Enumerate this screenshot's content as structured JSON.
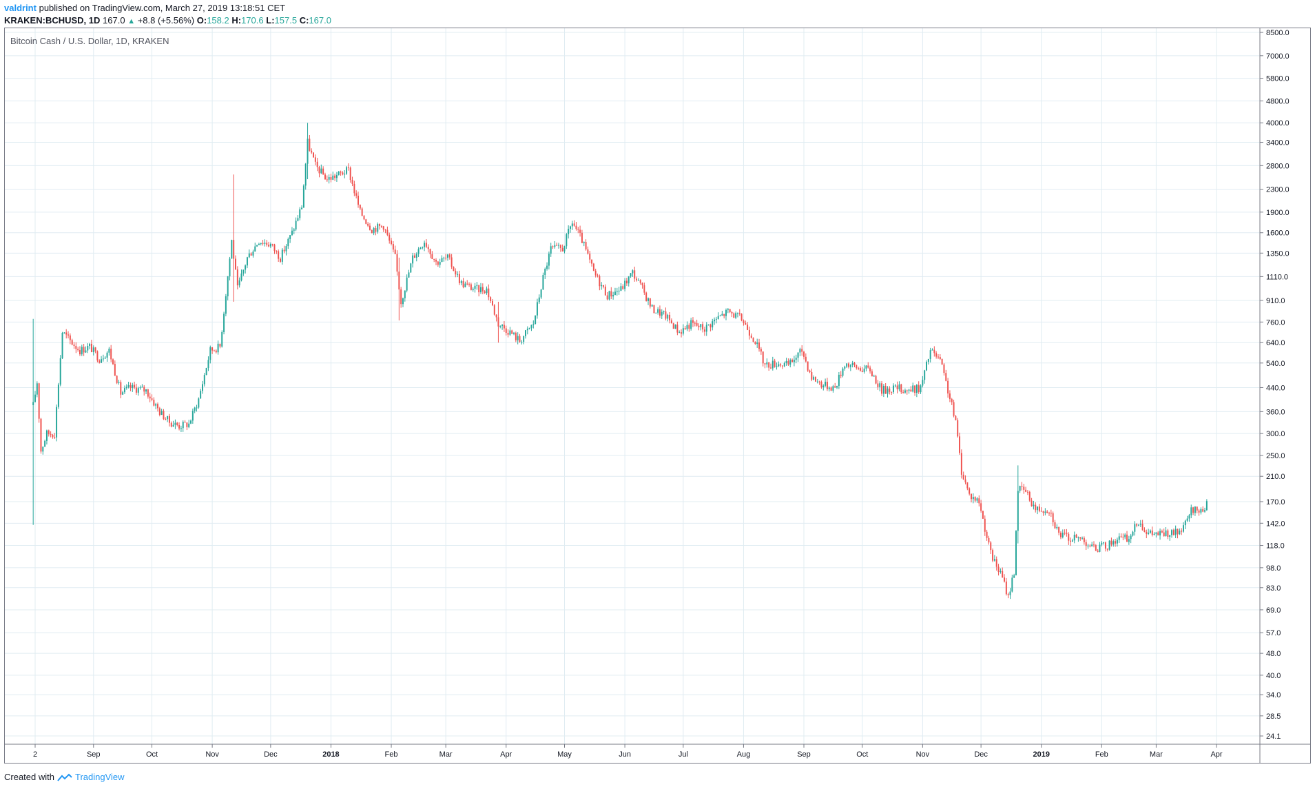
{
  "header": {
    "user": "valdrint",
    "published": "published on TradingView.com, March 27, 2019 13:18:51 CET",
    "symbol": "KRAKEN:BCHUSD, 1D",
    "last": "167.0",
    "change": "+8.8 (+5.56%)",
    "o_label": "O:",
    "o": "158.2",
    "h_label": "H:",
    "h": "170.6",
    "l_label": "L:",
    "l": "157.5",
    "c_label": "C:",
    "c": "167.0"
  },
  "footer": {
    "created": "Created with",
    "brand": "TradingView"
  },
  "colors": {
    "up": "#26a69a",
    "down": "#ef5350",
    "grid": "#e0ecf2",
    "axis": "#787b86"
  },
  "chart_data": {
    "type": "candlestick",
    "title": "Bitcoin Cash / U.S. Dollar, 1D, KRAKEN",
    "scale": "log",
    "ylim": [
      22.5,
      8800
    ],
    "grid": true,
    "y_ticks": [
      "8500.0",
      "7000.0",
      "5800.0",
      "4800.0",
      "4000.0",
      "3400.0",
      "2800.0",
      "2300.0",
      "1900.0",
      "1600.0",
      "1350.0",
      "1110.0",
      "910.0",
      "760.0",
      "640.0",
      "540.0",
      "440.0",
      "360.0",
      "300.0",
      "250.0",
      "210.0",
      "170.0",
      "142.0",
      "118.0",
      "98.0",
      "83.0",
      "69.0",
      "57.0",
      "48.0",
      "40.0",
      "34.0",
      "28.5",
      "24.1"
    ],
    "x_ticks": [
      {
        "date": "2017-08-02",
        "label": "2"
      },
      {
        "date": "2017-09-01",
        "label": "Sep"
      },
      {
        "date": "2017-10-01",
        "label": "Oct"
      },
      {
        "date": "2017-11-01",
        "label": "Nov"
      },
      {
        "date": "2017-12-01",
        "label": "Dec"
      },
      {
        "date": "2018-01-01",
        "label": "2018",
        "bold": true
      },
      {
        "date": "2018-02-01",
        "label": "Feb"
      },
      {
        "date": "2018-03-01",
        "label": "Mar"
      },
      {
        "date": "2018-04-01",
        "label": "Apr"
      },
      {
        "date": "2018-05-01",
        "label": "May"
      },
      {
        "date": "2018-06-01",
        "label": "Jun"
      },
      {
        "date": "2018-07-01",
        "label": "Jul"
      },
      {
        "date": "2018-08-01",
        "label": "Aug"
      },
      {
        "date": "2018-09-01",
        "label": "Sep"
      },
      {
        "date": "2018-10-01",
        "label": "Oct"
      },
      {
        "date": "2018-11-01",
        "label": "Nov"
      },
      {
        "date": "2018-12-01",
        "label": "Dec"
      },
      {
        "date": "2019-01-01",
        "label": "2019",
        "bold": true
      },
      {
        "date": "2019-02-01",
        "label": "Feb"
      },
      {
        "date": "2019-03-01",
        "label": "Mar"
      },
      {
        "date": "2019-04-01",
        "label": "Apr"
      }
    ],
    "series": [
      {
        "date": "2017-08-01",
        "close": 380
      },
      {
        "date": "2017-08-03",
        "close": 460
      },
      {
        "date": "2017-08-05",
        "close": 260
      },
      {
        "date": "2017-08-08",
        "close": 300
      },
      {
        "date": "2017-08-12",
        "close": 300
      },
      {
        "date": "2017-08-16",
        "close": 700
      },
      {
        "date": "2017-08-20",
        "close": 650
      },
      {
        "date": "2017-08-25",
        "close": 600
      },
      {
        "date": "2017-08-30",
        "close": 620
      },
      {
        "date": "2017-09-04",
        "close": 560
      },
      {
        "date": "2017-09-09",
        "close": 600
      },
      {
        "date": "2017-09-15",
        "close": 420
      },
      {
        "date": "2017-09-20",
        "close": 440
      },
      {
        "date": "2017-09-28",
        "close": 430
      },
      {
        "date": "2017-10-05",
        "close": 360
      },
      {
        "date": "2017-10-10",
        "close": 330
      },
      {
        "date": "2017-10-15",
        "close": 320
      },
      {
        "date": "2017-10-20",
        "close": 325
      },
      {
        "date": "2017-10-25",
        "close": 400
      },
      {
        "date": "2017-10-31",
        "close": 600
      },
      {
        "date": "2017-11-05",
        "close": 620
      },
      {
        "date": "2017-11-11",
        "close": 1500
      },
      {
        "date": "2017-11-14",
        "close": 1000
      },
      {
        "date": "2017-11-19",
        "close": 1300
      },
      {
        "date": "2017-11-25",
        "close": 1500
      },
      {
        "date": "2017-12-01",
        "close": 1450
      },
      {
        "date": "2017-12-06",
        "close": 1300
      },
      {
        "date": "2017-12-12",
        "close": 1600
      },
      {
        "date": "2017-12-17",
        "close": 2000
      },
      {
        "date": "2017-12-20",
        "close": 3400
      },
      {
        "date": "2017-12-24",
        "close": 2800
      },
      {
        "date": "2017-12-30",
        "close": 2500
      },
      {
        "date": "2018-01-05",
        "close": 2600
      },
      {
        "date": "2018-01-10",
        "close": 2700
      },
      {
        "date": "2018-01-16",
        "close": 1900
      },
      {
        "date": "2018-01-22",
        "close": 1650
      },
      {
        "date": "2018-01-28",
        "close": 1700
      },
      {
        "date": "2018-02-03",
        "close": 1300
      },
      {
        "date": "2018-02-06",
        "close": 900
      },
      {
        "date": "2018-02-12",
        "close": 1300
      },
      {
        "date": "2018-02-18",
        "close": 1500
      },
      {
        "date": "2018-02-24",
        "close": 1250
      },
      {
        "date": "2018-03-02",
        "close": 1300
      },
      {
        "date": "2018-03-09",
        "close": 1050
      },
      {
        "date": "2018-03-16",
        "close": 1000
      },
      {
        "date": "2018-03-22",
        "close": 1000
      },
      {
        "date": "2018-03-28",
        "close": 750
      },
      {
        "date": "2018-04-03",
        "close": 700
      },
      {
        "date": "2018-04-08",
        "close": 650
      },
      {
        "date": "2018-04-15",
        "close": 750
      },
      {
        "date": "2018-04-20",
        "close": 1100
      },
      {
        "date": "2018-04-24",
        "close": 1400
      },
      {
        "date": "2018-04-30",
        "close": 1400
      },
      {
        "date": "2018-05-05",
        "close": 1750
      },
      {
        "date": "2018-05-10",
        "close": 1500
      },
      {
        "date": "2018-05-16",
        "close": 1150
      },
      {
        "date": "2018-05-23",
        "close": 950
      },
      {
        "date": "2018-05-30",
        "close": 1000
      },
      {
        "date": "2018-06-05",
        "close": 1150
      },
      {
        "date": "2018-06-10",
        "close": 1000
      },
      {
        "date": "2018-06-15",
        "close": 850
      },
      {
        "date": "2018-06-22",
        "close": 800
      },
      {
        "date": "2018-06-29",
        "close": 700
      },
      {
        "date": "2018-07-05",
        "close": 750
      },
      {
        "date": "2018-07-12",
        "close": 720
      },
      {
        "date": "2018-07-18",
        "close": 780
      },
      {
        "date": "2018-07-24",
        "close": 830
      },
      {
        "date": "2018-07-31",
        "close": 780
      },
      {
        "date": "2018-08-07",
        "close": 650
      },
      {
        "date": "2018-08-12",
        "close": 530
      },
      {
        "date": "2018-08-18",
        "close": 540
      },
      {
        "date": "2018-08-24",
        "close": 530
      },
      {
        "date": "2018-08-31",
        "close": 600
      },
      {
        "date": "2018-09-05",
        "close": 480
      },
      {
        "date": "2018-09-11",
        "close": 450
      },
      {
        "date": "2018-09-17",
        "close": 440
      },
      {
        "date": "2018-09-22",
        "close": 540
      },
      {
        "date": "2018-09-28",
        "close": 520
      },
      {
        "date": "2018-10-05",
        "close": 510
      },
      {
        "date": "2018-10-11",
        "close": 430
      },
      {
        "date": "2018-10-18",
        "close": 440
      },
      {
        "date": "2018-10-25",
        "close": 430
      },
      {
        "date": "2018-10-31",
        "close": 440
      },
      {
        "date": "2018-11-05",
        "close": 600
      },
      {
        "date": "2018-11-10",
        "close": 550
      },
      {
        "date": "2018-11-14",
        "close": 430
      },
      {
        "date": "2018-11-18",
        "close": 330
      },
      {
        "date": "2018-11-21",
        "close": 220
      },
      {
        "date": "2018-11-25",
        "close": 180
      },
      {
        "date": "2018-11-30",
        "close": 170
      },
      {
        "date": "2018-12-06",
        "close": 110
      },
      {
        "date": "2018-12-12",
        "close": 90
      },
      {
        "date": "2018-12-15",
        "close": 77
      },
      {
        "date": "2018-12-18",
        "close": 95
      },
      {
        "date": "2018-12-20",
        "close": 190
      },
      {
        "date": "2018-12-24",
        "close": 185
      },
      {
        "date": "2018-12-29",
        "close": 160
      },
      {
        "date": "2019-01-05",
        "close": 160
      },
      {
        "date": "2019-01-10",
        "close": 130
      },
      {
        "date": "2019-01-16",
        "close": 125
      },
      {
        "date": "2019-01-22",
        "close": 125
      },
      {
        "date": "2019-01-28",
        "close": 115
      },
      {
        "date": "2019-02-04",
        "close": 118
      },
      {
        "date": "2019-02-09",
        "close": 125
      },
      {
        "date": "2019-02-15",
        "close": 125
      },
      {
        "date": "2019-02-20",
        "close": 145
      },
      {
        "date": "2019-02-25",
        "close": 130
      },
      {
        "date": "2019-03-03",
        "close": 130
      },
      {
        "date": "2019-03-10",
        "close": 130
      },
      {
        "date": "2019-03-15",
        "close": 135
      },
      {
        "date": "2019-03-19",
        "close": 158
      },
      {
        "date": "2019-03-24",
        "close": 158
      },
      {
        "date": "2019-03-27",
        "close": 167
      }
    ],
    "spikes": [
      {
        "date": "2017-08-01",
        "high": 780,
        "low": 140
      },
      {
        "date": "2017-11-12",
        "high": 2600,
        "low": 900
      },
      {
        "date": "2017-12-20",
        "high": 4000,
        "low": 2500
      },
      {
        "date": "2018-02-05",
        "high": 1300,
        "low": 770
      },
      {
        "date": "2018-03-28",
        "high": 900,
        "low": 640
      },
      {
        "date": "2018-12-20",
        "high": 230,
        "low": 120
      }
    ]
  }
}
